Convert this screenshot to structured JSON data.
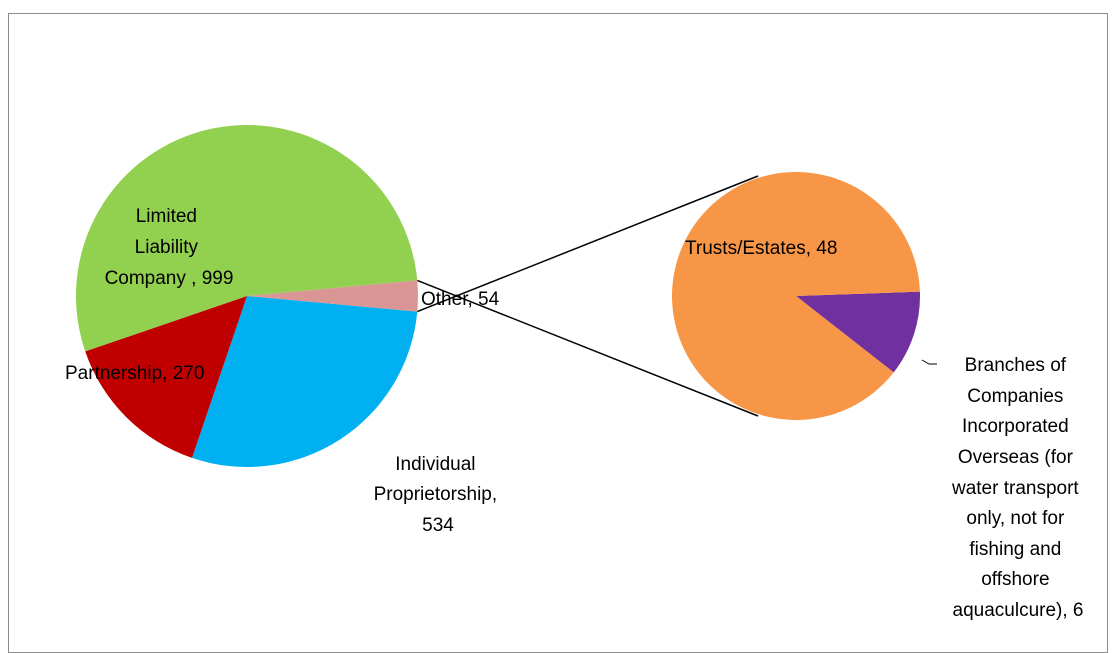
{
  "chart_data": {
    "type": "pie",
    "subtype": "pie-of-pie",
    "main_pie": {
      "slices": [
        {
          "label": "Limited Liability Company",
          "value": 999,
          "color": "#92d050",
          "label_text": "Limited Liability Company , 999"
        },
        {
          "label": "Partnership",
          "value": 270,
          "color": "#c00000",
          "label_text": "Partnership, 270"
        },
        {
          "label": "Individual Proprietorship",
          "value": 534,
          "color": "#00b0f0",
          "label_text": "Individual Proprietorship, 534"
        },
        {
          "label": "Other",
          "value": 54,
          "color": "#d99694",
          "label_text": "Other, 54"
        }
      ]
    },
    "secondary_pie": {
      "parent": "Other",
      "slices": [
        {
          "label": "Trusts/Estates",
          "value": 48,
          "color": "#f79646",
          "label_text": "Trusts/Estates, 48"
        },
        {
          "label": "Branches of Companies Incorporated Overseas (for water transport only, not for fishing and offshore aquaculcure)",
          "value": 6,
          "color": "#7030a0",
          "label_text": "Branches of Companies Incorporated Overseas (for water transport only, not for fishing and offshore aquaculcure), 6"
        }
      ]
    },
    "title": "",
    "legend": "none"
  }
}
